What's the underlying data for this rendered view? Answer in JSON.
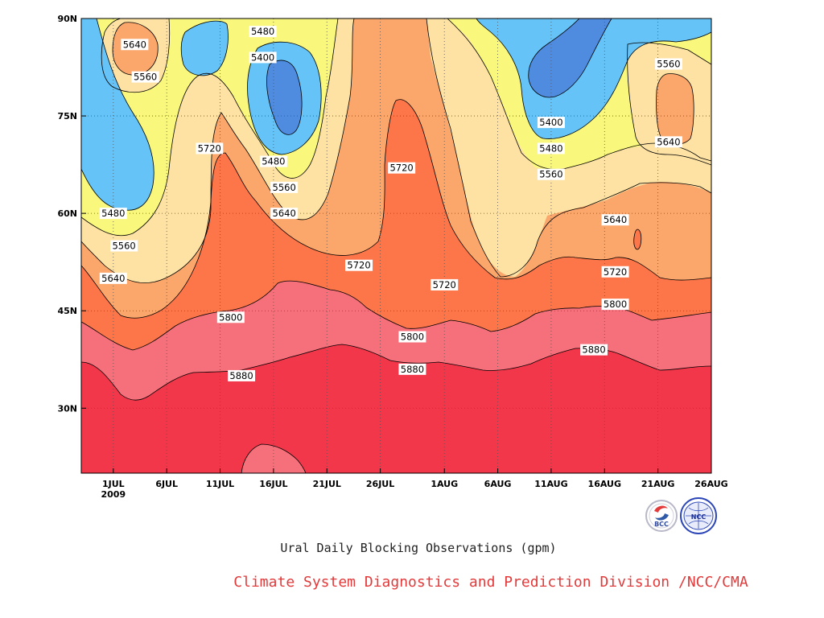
{
  "chart_data": {
    "type": "contour",
    "title": "Ural Daily Blocking Observations (gpm)",
    "x_ticks": [
      "1JUL",
      "6JUL",
      "11JUL",
      "16JUL",
      "21JUL",
      "26JUL",
      "1AUG",
      "6AUG",
      "11AUG",
      "16AUG",
      "21AUG",
      "26AUG"
    ],
    "x_year_label": "2009",
    "y_ticks": [
      "30N",
      "45N",
      "60N",
      "75N",
      "90N"
    ],
    "xlim": [
      "2009-06-28",
      "2009-08-26"
    ],
    "ylim": [
      20,
      90
    ],
    "contour_levels": [
      5400,
      5480,
      5560,
      5640,
      5720,
      5800,
      5880
    ],
    "fill_colors": {
      "below_5400": "#4f8ce0",
      "5400_5480": "#66c3f7",
      "5480_5560": "#f9f77c",
      "5560_5640": "#fde2a4",
      "5640_5720": "#fba76c",
      "5720_5800": "#fd7649",
      "5800_5880": "#f5707b",
      "above_5880": "#f2374a"
    },
    "contour_labels": [
      {
        "value": "5640",
        "date": "2009-07-03",
        "lat": 86
      },
      {
        "value": "5560",
        "date": "2009-07-04",
        "lat": 81
      },
      {
        "value": "5480",
        "date": "2009-07-15",
        "lat": 88
      },
      {
        "value": "5400",
        "date": "2009-07-15",
        "lat": 84
      },
      {
        "value": "5720",
        "date": "2009-07-10",
        "lat": 70
      },
      {
        "value": "5480",
        "date": "2009-07-16",
        "lat": 68
      },
      {
        "value": "5560",
        "date": "2009-07-17",
        "lat": 64
      },
      {
        "value": "5640",
        "date": "2009-07-17",
        "lat": 60
      },
      {
        "value": "5480",
        "date": "2009-07-01",
        "lat": 60
      },
      {
        "value": "5560",
        "date": "2009-07-02",
        "lat": 55
      },
      {
        "value": "5640",
        "date": "2009-07-01",
        "lat": 50
      },
      {
        "value": "5720",
        "date": "2009-07-24",
        "lat": 52
      },
      {
        "value": "5720",
        "date": "2009-07-28",
        "lat": 67
      },
      {
        "value": "5720",
        "date": "2009-08-01",
        "lat": 49
      },
      {
        "value": "5400",
        "date": "2009-08-11",
        "lat": 74
      },
      {
        "value": "5480",
        "date": "2009-08-11",
        "lat": 70
      },
      {
        "value": "5560",
        "date": "2009-08-11",
        "lat": 66
      },
      {
        "value": "5640",
        "date": "2009-08-17",
        "lat": 59
      },
      {
        "value": "5560",
        "date": "2009-08-22",
        "lat": 83
      },
      {
        "value": "5640",
        "date": "2009-08-22",
        "lat": 71
      },
      {
        "value": "5720",
        "date": "2009-08-17",
        "lat": 51
      },
      {
        "value": "5800",
        "date": "2009-08-17",
        "lat": 46
      },
      {
        "value": "5880",
        "date": "2009-08-15",
        "lat": 39
      },
      {
        "value": "5800",
        "date": "2009-07-12",
        "lat": 44
      },
      {
        "value": "5800",
        "date": "2009-07-29",
        "lat": 41
      },
      {
        "value": "5880",
        "date": "2009-07-13",
        "lat": 35
      },
      {
        "value": "5880",
        "date": "2009-07-29",
        "lat": 36
      }
    ]
  },
  "footer": {
    "title": "Ural Daily Blocking Observations (gpm)",
    "credit": "Climate System Diagnostics and Prediction Division /NCC/CMA"
  },
  "logos": {
    "bcc": "BCC",
    "ncc": "NCC"
  }
}
